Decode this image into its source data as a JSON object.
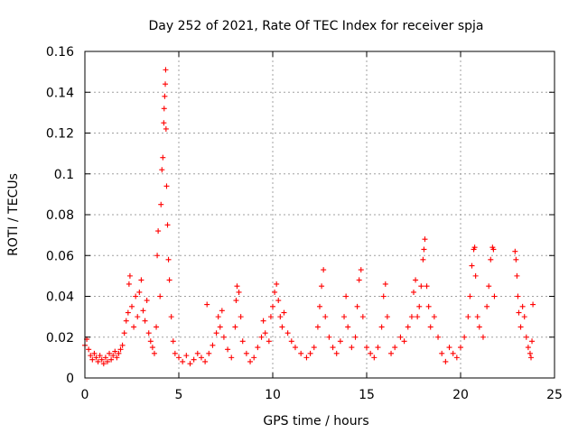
{
  "chart_data": {
    "type": "scatter",
    "title": "Day 252 of 2021, Rate Of TEC Index for receiver spja",
    "xlabel": "GPS time / hours",
    "ylabel": "ROTI / TECUs",
    "xlim": [
      0,
      25
    ],
    "ylim": [
      0,
      0.16
    ],
    "xticks": [
      0,
      5,
      10,
      15,
      20,
      25
    ],
    "xtick_labels": [
      "0",
      "5",
      "10",
      "15",
      "20",
      "25"
    ],
    "yticks": [
      0,
      0.02,
      0.04,
      0.06,
      0.08,
      0.1,
      0.12,
      0.14,
      0.16
    ],
    "ytick_labels": [
      "0",
      "0.02",
      "0.04",
      "0.06",
      "0.08",
      "0.1",
      "0.12",
      "0.14",
      "0.16"
    ],
    "grid": true,
    "marker": "+",
    "color": "#ff0000",
    "series": [
      {
        "name": "ROTI",
        "points": [
          [
            0.0,
            0.016
          ],
          [
            0.1,
            0.019
          ],
          [
            0.2,
            0.014
          ],
          [
            0.3,
            0.011
          ],
          [
            0.4,
            0.009
          ],
          [
            0.5,
            0.012
          ],
          [
            0.6,
            0.01
          ],
          [
            0.7,
            0.008
          ],
          [
            0.8,
            0.011
          ],
          [
            0.9,
            0.009
          ],
          [
            1.0,
            0.007
          ],
          [
            1.1,
            0.01
          ],
          [
            1.2,
            0.008
          ],
          [
            1.3,
            0.012
          ],
          [
            1.4,
            0.009
          ],
          [
            1.5,
            0.011
          ],
          [
            1.6,
            0.013
          ],
          [
            1.7,
            0.01
          ],
          [
            1.8,
            0.012
          ],
          [
            1.9,
            0.014
          ],
          [
            2.0,
            0.016
          ],
          [
            2.1,
            0.022
          ],
          [
            2.2,
            0.028
          ],
          [
            2.3,
            0.032
          ],
          [
            2.35,
            0.046
          ],
          [
            2.4,
            0.05
          ],
          [
            2.5,
            0.035
          ],
          [
            2.6,
            0.025
          ],
          [
            2.7,
            0.04
          ],
          [
            2.8,
            0.03
          ],
          [
            2.9,
            0.042
          ],
          [
            3.0,
            0.048
          ],
          [
            3.1,
            0.033
          ],
          [
            3.2,
            0.028
          ],
          [
            3.3,
            0.038
          ],
          [
            3.4,
            0.022
          ],
          [
            3.5,
            0.018
          ],
          [
            3.6,
            0.015
          ],
          [
            3.7,
            0.012
          ],
          [
            3.8,
            0.025
          ],
          [
            3.85,
            0.06
          ],
          [
            3.9,
            0.072
          ],
          [
            4.0,
            0.04
          ],
          [
            4.05,
            0.085
          ],
          [
            4.1,
            0.102
          ],
          [
            4.15,
            0.108
          ],
          [
            4.2,
            0.125
          ],
          [
            4.22,
            0.132
          ],
          [
            4.25,
            0.138
          ],
          [
            4.28,
            0.144
          ],
          [
            4.3,
            0.151
          ],
          [
            4.32,
            0.122
          ],
          [
            4.35,
            0.094
          ],
          [
            4.4,
            0.075
          ],
          [
            4.45,
            0.058
          ],
          [
            4.5,
            0.048
          ],
          [
            4.6,
            0.03
          ],
          [
            4.7,
            0.018
          ],
          [
            4.8,
            0.012
          ],
          [
            5.0,
            0.01
          ],
          [
            5.2,
            0.008
          ],
          [
            5.4,
            0.011
          ],
          [
            5.6,
            0.007
          ],
          [
            5.8,
            0.009
          ],
          [
            6.0,
            0.012
          ],
          [
            6.2,
            0.01
          ],
          [
            6.4,
            0.008
          ],
          [
            6.5,
            0.036
          ],
          [
            6.6,
            0.012
          ],
          [
            6.8,
            0.016
          ],
          [
            7.0,
            0.022
          ],
          [
            7.1,
            0.03
          ],
          [
            7.2,
            0.025
          ],
          [
            7.3,
            0.033
          ],
          [
            7.4,
            0.02
          ],
          [
            7.6,
            0.014
          ],
          [
            7.8,
            0.01
          ],
          [
            8.0,
            0.025
          ],
          [
            8.05,
            0.038
          ],
          [
            8.1,
            0.045
          ],
          [
            8.2,
            0.042
          ],
          [
            8.3,
            0.03
          ],
          [
            8.4,
            0.018
          ],
          [
            8.6,
            0.012
          ],
          [
            8.8,
            0.008
          ],
          [
            9.0,
            0.01
          ],
          [
            9.2,
            0.015
          ],
          [
            9.4,
            0.02
          ],
          [
            9.5,
            0.028
          ],
          [
            9.6,
            0.022
          ],
          [
            9.8,
            0.018
          ],
          [
            9.9,
            0.03
          ],
          [
            10.0,
            0.035
          ],
          [
            10.1,
            0.042
          ],
          [
            10.2,
            0.046
          ],
          [
            10.3,
            0.038
          ],
          [
            10.4,
            0.03
          ],
          [
            10.5,
            0.025
          ],
          [
            10.6,
            0.032
          ],
          [
            10.8,
            0.022
          ],
          [
            11.0,
            0.018
          ],
          [
            11.2,
            0.015
          ],
          [
            11.5,
            0.012
          ],
          [
            11.8,
            0.01
          ],
          [
            12.0,
            0.012
          ],
          [
            12.2,
            0.015
          ],
          [
            12.4,
            0.025
          ],
          [
            12.5,
            0.035
          ],
          [
            12.6,
            0.045
          ],
          [
            12.7,
            0.053
          ],
          [
            12.8,
            0.03
          ],
          [
            13.0,
            0.02
          ],
          [
            13.2,
            0.015
          ],
          [
            13.4,
            0.012
          ],
          [
            13.6,
            0.018
          ],
          [
            13.8,
            0.03
          ],
          [
            13.9,
            0.04
          ],
          [
            14.0,
            0.025
          ],
          [
            14.2,
            0.015
          ],
          [
            14.4,
            0.02
          ],
          [
            14.5,
            0.035
          ],
          [
            14.6,
            0.048
          ],
          [
            14.7,
            0.053
          ],
          [
            14.8,
            0.03
          ],
          [
            15.0,
            0.015
          ],
          [
            15.2,
            0.012
          ],
          [
            15.4,
            0.01
          ],
          [
            15.6,
            0.015
          ],
          [
            15.8,
            0.025
          ],
          [
            15.9,
            0.04
          ],
          [
            16.0,
            0.046
          ],
          [
            16.1,
            0.03
          ],
          [
            16.3,
            0.012
          ],
          [
            16.5,
            0.015
          ],
          [
            16.8,
            0.02
          ],
          [
            17.0,
            0.018
          ],
          [
            17.2,
            0.025
          ],
          [
            17.4,
            0.03
          ],
          [
            17.5,
            0.042
          ],
          [
            17.6,
            0.048
          ],
          [
            17.7,
            0.03
          ],
          [
            17.8,
            0.035
          ],
          [
            17.9,
            0.045
          ],
          [
            18.0,
            0.058
          ],
          [
            18.05,
            0.063
          ],
          [
            18.1,
            0.068
          ],
          [
            18.2,
            0.045
          ],
          [
            18.3,
            0.035
          ],
          [
            18.4,
            0.025
          ],
          [
            18.6,
            0.03
          ],
          [
            18.8,
            0.02
          ],
          [
            19.0,
            0.012
          ],
          [
            19.2,
            0.008
          ],
          [
            19.4,
            0.015
          ],
          [
            19.6,
            0.012
          ],
          [
            19.8,
            0.01
          ],
          [
            20.0,
            0.015
          ],
          [
            20.2,
            0.02
          ],
          [
            20.4,
            0.03
          ],
          [
            20.5,
            0.04
          ],
          [
            20.6,
            0.055
          ],
          [
            20.7,
            0.063
          ],
          [
            20.75,
            0.064
          ],
          [
            20.8,
            0.05
          ],
          [
            20.9,
            0.03
          ],
          [
            21.0,
            0.025
          ],
          [
            21.2,
            0.02
          ],
          [
            21.4,
            0.035
          ],
          [
            21.5,
            0.045
          ],
          [
            21.6,
            0.058
          ],
          [
            21.7,
            0.064
          ],
          [
            21.75,
            0.063
          ],
          [
            21.8,
            0.04
          ],
          [
            22.9,
            0.062
          ],
          [
            22.95,
            0.058
          ],
          [
            23.0,
            0.05
          ],
          [
            23.05,
            0.04
          ],
          [
            23.1,
            0.032
          ],
          [
            23.2,
            0.025
          ],
          [
            23.3,
            0.035
          ],
          [
            23.4,
            0.03
          ],
          [
            23.5,
            0.02
          ],
          [
            23.6,
            0.015
          ],
          [
            23.7,
            0.012
          ],
          [
            23.75,
            0.01
          ],
          [
            23.8,
            0.018
          ],
          [
            23.85,
            0.036
          ]
        ]
      }
    ]
  }
}
